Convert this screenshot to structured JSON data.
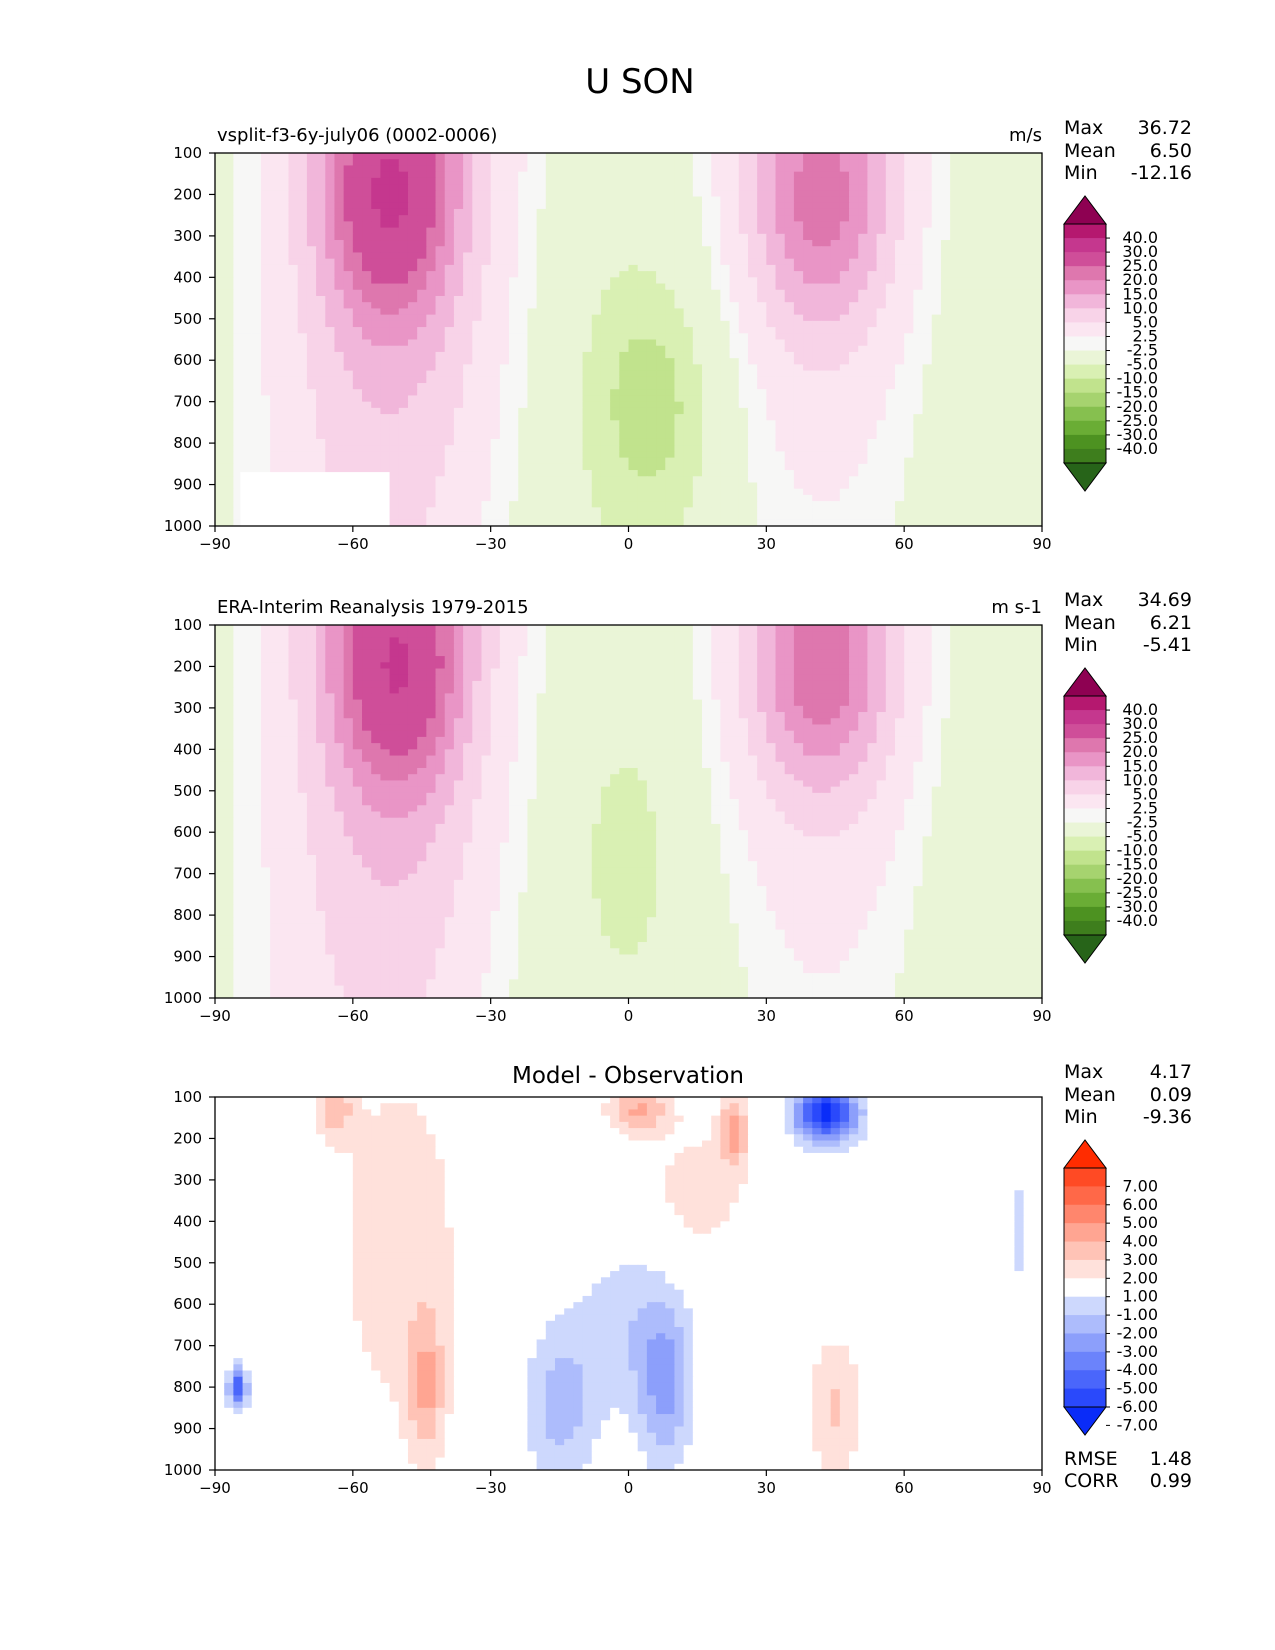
{
  "figure": {
    "title": "U SON"
  },
  "colors": {
    "wind_levels": [
      -40,
      -30,
      -25,
      -20,
      -15,
      -10,
      -5,
      -2.5,
      2.5,
      5,
      10,
      15,
      20,
      25,
      30,
      40
    ],
    "wind_colors": [
      "#276419",
      "#3e7e1d",
      "#4d9221",
      "#6aad35",
      "#86c04f",
      "#a6d36f",
      "#c1e38d",
      "#d9f0b3",
      "#eaf5d7",
      "#f7f7f6",
      "#fbe6f1",
      "#f8d3e8",
      "#f1b6da",
      "#e995c6",
      "#de77ae",
      "#cf4e99",
      "#c5378e",
      "#b5186f",
      "#8e0152"
    ],
    "diff_levels": [
      -7,
      -6,
      -5,
      -4,
      -3,
      -2,
      -1,
      1,
      2,
      3,
      4,
      5,
      6,
      7
    ],
    "diff_colors": [
      "#0a2cf8",
      "#2a49fb",
      "#4a66fb",
      "#6b83fb",
      "#8c9ffb",
      "#adbcfc",
      "#cdd8fd",
      "#ffffff",
      "#ffe1db",
      "#ffc3b6",
      "#ffa592",
      "#ff866d",
      "#ff6848",
      "#ff4a24",
      "#ff2c00"
    ]
  },
  "chart_data": [
    {
      "type": "heatmap",
      "title": "vsplit-f3-6y-july06 (0002-0006)",
      "units": "m/s",
      "xlim": [
        -90,
        90
      ],
      "ylim": [
        1000,
        100
      ],
      "xticks": [
        "−90",
        "−60",
        "−30",
        "0",
        "30",
        "60",
        "90"
      ],
      "yticks": [
        "100",
        "200",
        "300",
        "400",
        "500",
        "600",
        "700",
        "800",
        "900",
        "1000"
      ],
      "stats": [
        {
          "label": "Max",
          "value": "36.72"
        },
        {
          "label": "Mean",
          "value": "6.50"
        },
        {
          "label": "Min",
          "value": "-12.16"
        }
      ],
      "colorbar_labels": [
        "40.0",
        "30.0",
        "25.0",
        "20.0",
        "15.0",
        "10.0",
        "5.0",
        "2.5",
        "-2.5",
        "-5.0",
        "-10.0",
        "-15.0",
        "-20.0",
        "-25.0",
        "-30.0",
        "-40.0"
      ],
      "jets": [
        {
          "lat": -52,
          "plev": 220,
          "peak": 35.5,
          "sx": 13,
          "sy": 260
        },
        {
          "lat": 42,
          "plev": 230,
          "peak": 27.5,
          "sx": 15,
          "sy": 280
        },
        {
          "lat": 6,
          "plev": 700,
          "peak": -9.5,
          "sx": 16,
          "sy": 320
        }
      ]
    },
    {
      "type": "heatmap",
      "title": "ERA-Interim Reanalysis 1979-2015",
      "units": "m s-1",
      "xlim": [
        -90,
        90
      ],
      "ylim": [
        1000,
        100
      ],
      "xticks": [
        "−90",
        "−60",
        "−30",
        "0",
        "30",
        "60",
        "90"
      ],
      "yticks": [
        "100",
        "200",
        "300",
        "400",
        "500",
        "600",
        "700",
        "800",
        "900",
        "1000"
      ],
      "stats": [
        {
          "label": "Max",
          "value": "34.69"
        },
        {
          "label": "Mean",
          "value": "6.21"
        },
        {
          "label": "Min",
          "value": "-5.41"
        }
      ],
      "colorbar_labels": [
        "40.0",
        "30.0",
        "25.0",
        "20.0",
        "15.0",
        "10.0",
        "5.0",
        "2.5",
        "-2.5",
        "-5.0",
        "-10.0",
        "-15.0",
        "-20.0",
        "-25.0",
        "-30.0",
        "-40.0"
      ],
      "jets": [
        {
          "lat": -50,
          "plev": 220,
          "peak": 34,
          "sx": 13,
          "sy": 260
        },
        {
          "lat": 42,
          "plev": 220,
          "peak": 29.5,
          "sx": 15,
          "sy": 270
        },
        {
          "lat": 0,
          "plev": 650,
          "peak": -4.5,
          "sx": 12,
          "sy": 320
        }
      ]
    },
    {
      "type": "heatmap",
      "title": "Model - Observation",
      "xlim": [
        -90,
        90
      ],
      "ylim": [
        1000,
        100
      ],
      "xticks": [
        "−90",
        "−60",
        "−30",
        "0",
        "30",
        "60",
        "90"
      ],
      "yticks": [
        "100",
        "200",
        "300",
        "400",
        "500",
        "600",
        "700",
        "800",
        "900",
        "1000"
      ],
      "stats": [
        {
          "label": "Max",
          "value": "4.17"
        },
        {
          "label": "Mean",
          "value": "0.09"
        },
        {
          "label": "Min",
          "value": "-9.36"
        }
      ],
      "extra_stats": [
        {
          "label": "RMSE",
          "value": "1.48"
        },
        {
          "label": "CORR",
          "value": "0.99"
        }
      ],
      "colorbar_labels": [
        "7.00",
        "6.00",
        "5.00",
        "4.00",
        "3.00",
        "2.00",
        "1.00",
        "-1.00",
        "-2.00",
        "-3.00",
        "-4.00",
        "-5.00",
        "-6.00",
        "-7.00"
      ],
      "anomalies": [
        {
          "lat": 43,
          "plev": 140,
          "peak": -7.5,
          "sx": 7,
          "sy": 70
        },
        {
          "lat": 23,
          "plev": 180,
          "peak": 3.2,
          "sx": 3,
          "sy": 90
        },
        {
          "lat": 2,
          "plev": 130,
          "peak": 3.0,
          "sx": 7,
          "sy": 60
        },
        {
          "lat": -64,
          "plev": 130,
          "peak": 2.5,
          "sx": 4,
          "sy": 70
        },
        {
          "lat": -44,
          "plev": 800,
          "peak": 2.6,
          "sx": 4,
          "sy": 180
        },
        {
          "lat": -50,
          "plev": 450,
          "peak": 1.6,
          "sx": 16,
          "sy": 500
        },
        {
          "lat": 15,
          "plev": 330,
          "peak": 1.5,
          "sx": 12,
          "sy": 180
        },
        {
          "lat": 8,
          "plev": 800,
          "peak": -3.0,
          "sx": 6,
          "sy": 200
        },
        {
          "lat": -15,
          "plev": 850,
          "peak": -2.4,
          "sx": 8,
          "sy": 200
        },
        {
          "lat": 0,
          "plev": 650,
          "peak": -1.6,
          "sx": 12,
          "sy": 220
        },
        {
          "lat": 45,
          "plev": 850,
          "peak": 2.1,
          "sx": 6,
          "sy": 180
        },
        {
          "lat": 85,
          "plev": 420,
          "peak": -1.5,
          "sx": 2,
          "sy": 150
        },
        {
          "lat": -85,
          "plev": 800,
          "peak": -6,
          "sx": 2,
          "sy": 50
        }
      ]
    }
  ]
}
